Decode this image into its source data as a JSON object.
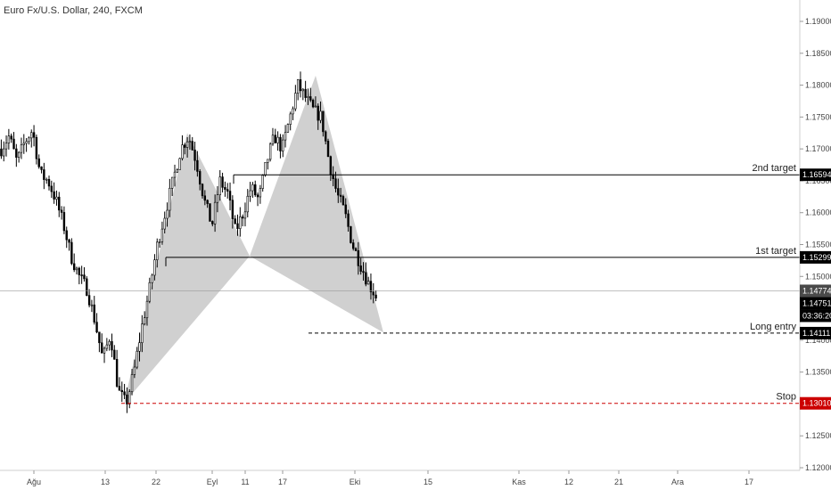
{
  "chart_data": {
    "type": "candlestick",
    "title": "Euro Fx/U.S. Dollar, 240, FXCM",
    "y_ticks": [
      "1.19000",
      "1.18500",
      "1.18000",
      "1.17500",
      "1.17000",
      "1.16500",
      "1.16000",
      "1.15500",
      "1.15000",
      "1.14500",
      "1.14000",
      "1.13500",
      "1.13000",
      "1.12500",
      "1.12000"
    ],
    "y_tick_values": [
      1.19,
      1.185,
      1.18,
      1.175,
      1.17,
      1.165,
      1.16,
      1.155,
      1.15,
      1.145,
      1.14,
      1.135,
      1.13,
      1.125,
      1.12
    ],
    "ylim": [
      1.1195,
      1.1945
    ],
    "x_ticks": [
      "Ağu",
      "13",
      "22",
      "Eyl",
      "11",
      "17",
      "Eki",
      "15",
      "Kas",
      "12",
      "21",
      "Ara",
      "17"
    ],
    "levels": [
      {
        "name": "2nd target",
        "value": 1.16594,
        "tag": "1.16594",
        "style": "solid",
        "color": "#000000"
      },
      {
        "name": "1st target",
        "value": 1.15299,
        "tag": "1.15299",
        "style": "solid",
        "color": "#000000"
      },
      {
        "name": "Long entry",
        "value": 1.14111,
        "tag": "1.14111",
        "style": "dashed",
        "color": "#000000"
      },
      {
        "name": "Stop",
        "value": 1.1301,
        "tag": "1.13010",
        "style": "dashed",
        "color": "#cc0000"
      }
    ],
    "current_price": {
      "tag": "1.14774",
      "value": 1.14774
    },
    "last_price": {
      "tag": "1.14751",
      "value": 1.14751
    },
    "countdown": "03:36:20",
    "pattern": {
      "type": "harmonic",
      "X": 1.1301,
      "A": 1.1725,
      "B": 1.1532,
      "C": 1.1815,
      "D": 1.1412,
      "fill_color": "#c8c8c8"
    },
    "key_prices": [
      1.17,
      1.172,
      1.168,
      1.171,
      1.173,
      1.166,
      1.165,
      1.162,
      1.158,
      1.153,
      1.15,
      1.148,
      1.143,
      1.137,
      1.141,
      1.132,
      1.13,
      1.135,
      1.142,
      1.148,
      1.155,
      1.16,
      1.165,
      1.17,
      1.172,
      1.168,
      1.162,
      1.158,
      1.165,
      1.163,
      1.157,
      1.16,
      1.164,
      1.162,
      1.168,
      1.172,
      1.17,
      1.175,
      1.18,
      1.178,
      1.176,
      1.175,
      1.168,
      1.163,
      1.16,
      1.155,
      1.152,
      1.149,
      1.147
    ],
    "colors": {
      "candle": "#000000",
      "grid_border": "#dcdcdc",
      "current_tag": "#4a4a4a",
      "dark_tag": "#000000",
      "stop": "#cc0000"
    }
  }
}
